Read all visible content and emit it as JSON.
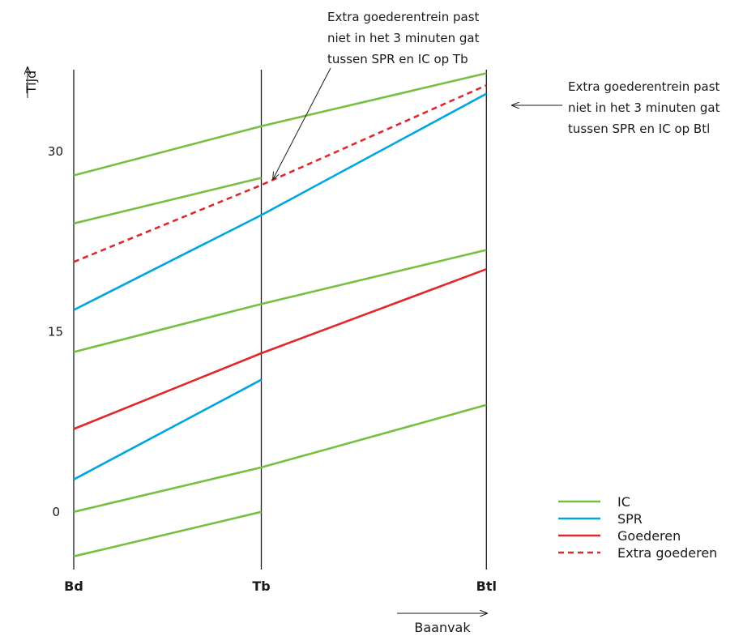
{
  "chart_data": {
    "type": "line",
    "title": "",
    "xlabel": "Baanvak",
    "ylabel": "Tijd",
    "stations": [
      "Bd",
      "Tb",
      "Btl"
    ],
    "station_km": [
      0,
      1,
      2.2
    ],
    "yticks": [
      0,
      15,
      30
    ],
    "ylim": [
      -4.8,
      36.8
    ],
    "grid": false,
    "legend_position": "bottom-right",
    "legend": [
      {
        "label": "IC",
        "color": "#76bf43",
        "dashed": false
      },
      {
        "label": "SPR",
        "color": "#00a6e2",
        "dashed": false
      },
      {
        "label": "Goederen",
        "color": "#e0292c",
        "dashed": false
      },
      {
        "label": "Extra goederen",
        "color": "#e0292c",
        "dashed": true
      }
    ],
    "series": [
      {
        "series": "IC",
        "x": [
          0,
          1
        ],
        "y": [
          -3.7,
          0
        ]
      },
      {
        "series": "IC",
        "x": [
          0,
          1,
          2.2
        ],
        "y": [
          0,
          3.7,
          8.9
        ]
      },
      {
        "series": "IC",
        "x": [
          0,
          1,
          2.2
        ],
        "y": [
          13.3,
          17.3,
          21.8
        ]
      },
      {
        "series": "IC",
        "x": [
          0,
          1
        ],
        "y": [
          24,
          27.8
        ]
      },
      {
        "series": "IC",
        "x": [
          0,
          1,
          2.2
        ],
        "y": [
          28,
          32.1,
          36.5
        ]
      },
      {
        "series": "SPR",
        "x": [
          0,
          1
        ],
        "y": [
          2.7,
          11
        ]
      },
      {
        "series": "SPR",
        "x": [
          0,
          1,
          2.2
        ],
        "y": [
          16.8,
          24.7,
          34.8
        ]
      },
      {
        "series": "Goederen",
        "x": [
          0,
          1,
          2.2
        ],
        "y": [
          6.9,
          13.2,
          20.2
        ]
      },
      {
        "series": "Extra goederen",
        "x": [
          0,
          1,
          2.2
        ],
        "y": [
          20.8,
          27.2,
          35.5
        ]
      }
    ],
    "annotations": [
      {
        "lines": [
          "Extra goederentrein past",
          "niet in het 3 minuten gat",
          "tussen SPR en IC op Tb"
        ]
      },
      {
        "lines": [
          "Extra goederentrein past",
          "niet in het 3 minuten gat",
          "tussen SPR en IC op Btl"
        ]
      }
    ]
  }
}
